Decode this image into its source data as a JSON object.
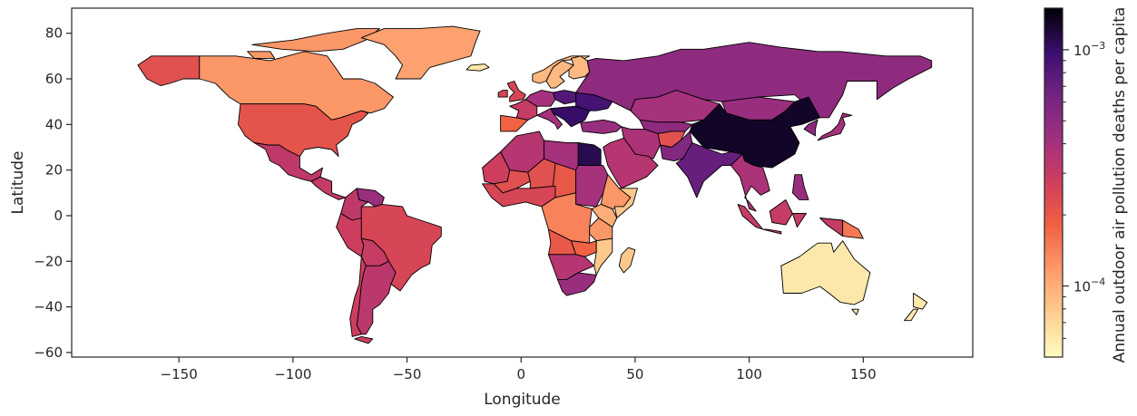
{
  "chart_data": {
    "type": "choropleth map",
    "xlabel": "Longitude",
    "ylabel": "Latitude",
    "xlim": [
      -197,
      198
    ],
    "ylim": [
      -62,
      91
    ],
    "xticks": [
      "−150",
      "−100",
      "−50",
      "0",
      "50",
      "100",
      "150"
    ],
    "xtick_values": [
      -150,
      -100,
      -50,
      0,
      50,
      100,
      150
    ],
    "yticks": [
      "80",
      "60",
      "40",
      "20",
      "0",
      "−20",
      "−40",
      "−60"
    ],
    "ytick_values": [
      80,
      60,
      40,
      20,
      0,
      -20,
      -40,
      -60
    ],
    "colorbar": {
      "label": "Annual outdoor air pollution deaths per capita",
      "scale": "log",
      "colormap": "magma_r",
      "range": [
        5e-05,
        0.0015
      ],
      "major_ticks": [
        {
          "value": 0.001,
          "label_base": "10",
          "label_exp": "−3"
        },
        {
          "value": 0.0001,
          "label_base": "10",
          "label_exp": "−4"
        }
      ],
      "minor_tick_values": [
        6e-05,
        7e-05,
        8e-05,
        9e-05,
        0.0002,
        0.0003,
        0.0004,
        0.0005,
        0.0006,
        0.0007,
        0.0008,
        0.0009
      ]
    },
    "regions": [
      {
        "name": "Alaska",
        "value": 0.00022
      },
      {
        "name": "Canada",
        "value": 0.00012
      },
      {
        "name": "Greenland",
        "value": 0.00011
      },
      {
        "name": "United States",
        "value": 0.00021
      },
      {
        "name": "Mexico",
        "value": 0.00032
      },
      {
        "name": "Central America",
        "value": 0.0003
      },
      {
        "name": "Colombia",
        "value": 0.00032
      },
      {
        "name": "Venezuela",
        "value": 0.00045
      },
      {
        "name": "Peru",
        "value": 0.00028
      },
      {
        "name": "Brazil",
        "value": 0.00025
      },
      {
        "name": "Bolivia",
        "value": 0.0003
      },
      {
        "name": "Argentina",
        "value": 0.00033
      },
      {
        "name": "Chile",
        "value": 0.00028
      },
      {
        "name": "Iceland",
        "value": 6e-05
      },
      {
        "name": "Norway",
        "value": 9e-05
      },
      {
        "name": "Sweden",
        "value": 9e-05
      },
      {
        "name": "Finland",
        "value": 9e-05
      },
      {
        "name": "United Kingdom",
        "value": 0.00025
      },
      {
        "name": "Spain",
        "value": 0.00018
      },
      {
        "name": "France",
        "value": 0.0003
      },
      {
        "name": "Germany",
        "value": 0.0004
      },
      {
        "name": "Poland",
        "value": 0.0008
      },
      {
        "name": "Italy",
        "value": 0.0004
      },
      {
        "name": "Ukraine",
        "value": 0.0009
      },
      {
        "name": "Balkans",
        "value": 0.001
      },
      {
        "name": "Turkey",
        "value": 0.00045
      },
      {
        "name": "Russia",
        "value": 0.0005
      },
      {
        "name": "Kazakhstan",
        "value": 0.0004
      },
      {
        "name": "Central Asia",
        "value": 0.0005
      },
      {
        "name": "Mongolia",
        "value": 0.00045
      },
      {
        "name": "China",
        "value": 0.0013
      },
      {
        "name": "Iran",
        "value": 0.00038
      },
      {
        "name": "Afghanistan",
        "value": 0.00022
      },
      {
        "name": "Pakistan",
        "value": 0.00055
      },
      {
        "name": "India",
        "value": 0.0007
      },
      {
        "name": "Arabian Peninsula",
        "value": 0.00035
      },
      {
        "name": "Egypt",
        "value": 0.0011
      },
      {
        "name": "Libya",
        "value": 0.0004
      },
      {
        "name": "Algeria",
        "value": 0.00035
      },
      {
        "name": "Mauritania",
        "value": 0.00028
      },
      {
        "name": "Mali",
        "value": 0.00022
      },
      {
        "name": "Niger",
        "value": 0.00022
      },
      {
        "name": "Chad",
        "value": 0.0002
      },
      {
        "name": "Sudan",
        "value": 0.0004
      },
      {
        "name": "Nigeria",
        "value": 0.00025
      },
      {
        "name": "Ethiopia",
        "value": 0.00012
      },
      {
        "name": "Somalia",
        "value": 8e-05
      },
      {
        "name": "DR Congo",
        "value": 0.00014
      },
      {
        "name": "Kenya",
        "value": 0.0001
      },
      {
        "name": "Tanzania",
        "value": 0.00012
      },
      {
        "name": "Angola",
        "value": 0.0002
      },
      {
        "name": "Zambia",
        "value": 0.00018
      },
      {
        "name": "Mozambique",
        "value": 8e-05
      },
      {
        "name": "Namibia",
        "value": 0.00035
      },
      {
        "name": "South Africa",
        "value": 0.00045
      },
      {
        "name": "Madagascar",
        "value": 8e-05
      },
      {
        "name": "Southeast Asia",
        "value": 0.00038
      },
      {
        "name": "Indonesia",
        "value": 0.0003
      },
      {
        "name": "Papua New Guinea",
        "value": 0.00015
      },
      {
        "name": "Philippines",
        "value": 0.00045
      },
      {
        "name": "Japan",
        "value": 0.0004
      },
      {
        "name": "Korea",
        "value": 0.0005
      },
      {
        "name": "Australia",
        "value": 6e-05
      },
      {
        "name": "New Zealand",
        "value": 6e-05
      }
    ]
  }
}
